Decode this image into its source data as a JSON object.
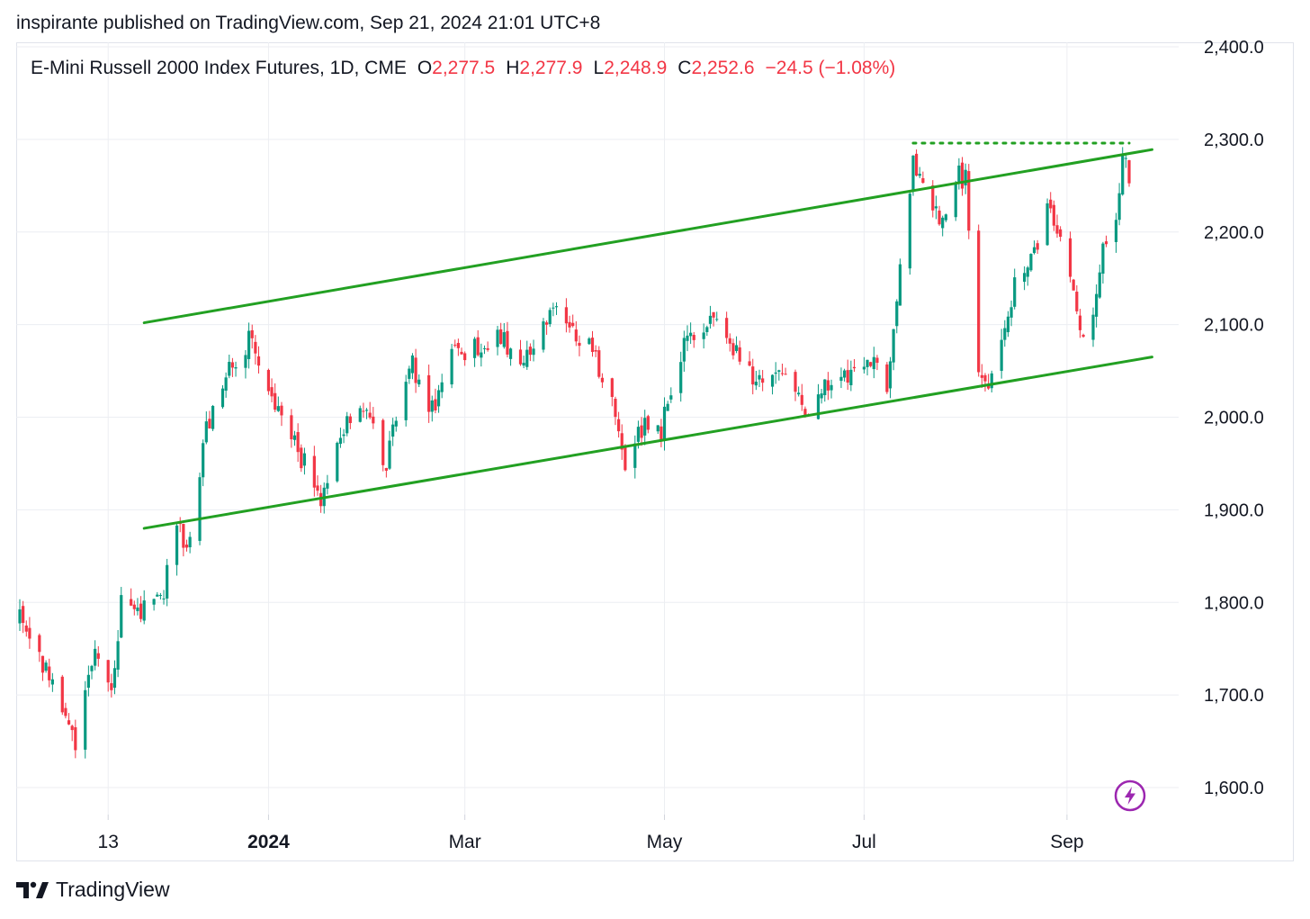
{
  "header": {
    "published": "inspirante published on TradingView.com, Sep 21, 2024 21:01 UTC+8"
  },
  "legend": {
    "symbol": "E-Mini Russell 2000 Index Futures, 1D, CME",
    "open_label": "O",
    "open": "2,277.5",
    "high_label": "H",
    "high": "2,277.9",
    "low_label": "L",
    "low": "2,248.9",
    "close_label": "C",
    "close": "2,252.6",
    "change": "−24.5 (−1.08%)"
  },
  "footer": {
    "brand": "TradingView",
    "logo_icon": "tradingview-logo-icon"
  },
  "chart_data": {
    "type": "candlestick",
    "y_scale": "linear",
    "ylim": [
      1570,
      2430
    ],
    "y_ticks": [
      1600,
      1700,
      1800,
      1900,
      2000,
      2100,
      2200,
      2300,
      2400
    ],
    "y_tick_labels": [
      "1,600.0",
      "1,700.0",
      "1,800.0",
      "1,900.0",
      "2,000.0",
      "2,100.0",
      "2,200.0",
      "2,300.0",
      "2,400.0"
    ],
    "x_ticks": [
      "13",
      "2024",
      "Mar",
      "May",
      "Jul",
      "Sep"
    ],
    "x_tick_dates": [
      "2023-11-13",
      "2024-01-01",
      "2024-03-01",
      "2024-05-01",
      "2024-07-01",
      "2024-09-01"
    ],
    "bold_x_tick": "2024",
    "xlim": [
      "2023-10-17",
      "2024-09-20"
    ],
    "grid": true,
    "up_color": "#089981",
    "down_color": "#f23645",
    "line_color": "#22a022",
    "price_path": [
      [
        "2023-10-17",
        1785
      ],
      [
        "2023-10-25",
        1730
      ],
      [
        "2023-11-01",
        1660
      ],
      [
        "2023-11-03",
        1645
      ],
      [
        "2023-11-06",
        1700
      ],
      [
        "2023-11-09",
        1760
      ],
      [
        "2023-11-14",
        1700
      ],
      [
        "2023-11-17",
        1800
      ],
      [
        "2023-11-22",
        1790
      ],
      [
        "2023-11-30",
        1810
      ],
      [
        "2023-12-04",
        1880
      ],
      [
        "2023-12-08",
        1860
      ],
      [
        "2023-12-13",
        1985
      ],
      [
        "2023-12-19",
        2045
      ],
      [
        "2023-12-27",
        2090
      ],
      [
        "2024-01-03",
        2010
      ],
      [
        "2024-01-08",
        1975
      ],
      [
        "2024-01-17",
        1915
      ],
      [
        "2024-01-24",
        1985
      ],
      [
        "2024-01-30",
        2015
      ],
      [
        "2024-02-06",
        1945
      ],
      [
        "2024-02-13",
        2065
      ],
      [
        "2024-02-20",
        2010
      ],
      [
        "2024-02-26",
        2065
      ],
      [
        "2024-03-05",
        2080
      ],
      [
        "2024-03-12",
        2090
      ],
      [
        "2024-03-18",
        2045
      ],
      [
        "2024-03-28",
        2120
      ],
      [
        "2024-04-02",
        2095
      ],
      [
        "2024-04-09",
        2070
      ],
      [
        "2024-04-16",
        2000
      ],
      [
        "2024-04-19",
        1955
      ],
      [
        "2024-04-25",
        1995
      ],
      [
        "2024-04-30",
        1985
      ],
      [
        "2024-05-06",
        2070
      ],
      [
        "2024-05-15",
        2105
      ],
      [
        "2024-05-21",
        2080
      ],
      [
        "2024-05-29",
        2035
      ],
      [
        "2024-06-05",
        2050
      ],
      [
        "2024-06-14",
        2000
      ],
      [
        "2024-06-19",
        2040
      ],
      [
        "2024-06-26",
        2045
      ],
      [
        "2024-07-03",
        2060
      ],
      [
        "2024-07-08",
        2040
      ],
      [
        "2024-07-12",
        2160
      ],
      [
        "2024-07-16",
        2280
      ],
      [
        "2024-07-24",
        2210
      ],
      [
        "2024-07-30",
        2260
      ],
      [
        "2024-08-01",
        2255
      ],
      [
        "2024-08-05",
        2060
      ],
      [
        "2024-08-07",
        2030
      ],
      [
        "2024-08-12",
        2075
      ],
      [
        "2024-08-16",
        2150
      ],
      [
        "2024-08-22",
        2180
      ],
      [
        "2024-08-26",
        2225
      ],
      [
        "2024-08-29",
        2200
      ],
      [
        "2024-09-03",
        2130
      ],
      [
        "2024-09-06",
        2090
      ],
      [
        "2024-09-09",
        2100
      ],
      [
        "2024-09-12",
        2185
      ],
      [
        "2024-09-16",
        2215
      ],
      [
        "2024-09-18",
        2278
      ],
      [
        "2024-09-19",
        2277.5
      ],
      [
        "2024-09-20",
        2252.6
      ]
    ],
    "last_candle": {
      "date": "2024-09-20",
      "open": 2277.5,
      "high": 2277.9,
      "low": 2248.9,
      "close": 2252.6
    },
    "trendlines": [
      {
        "style": "solid",
        "from": [
          "2023-11-24",
          2102
        ],
        "to": [
          "2024-09-27",
          2289
        ]
      },
      {
        "style": "solid",
        "from": [
          "2023-11-24",
          1880
        ],
        "to": [
          "2024-09-27",
          2065
        ]
      },
      {
        "style": "dotted",
        "from": [
          "2024-07-16",
          2296
        ],
        "to": [
          "2024-09-20",
          2296
        ]
      }
    ],
    "marker_icon": "lightning-icon"
  }
}
